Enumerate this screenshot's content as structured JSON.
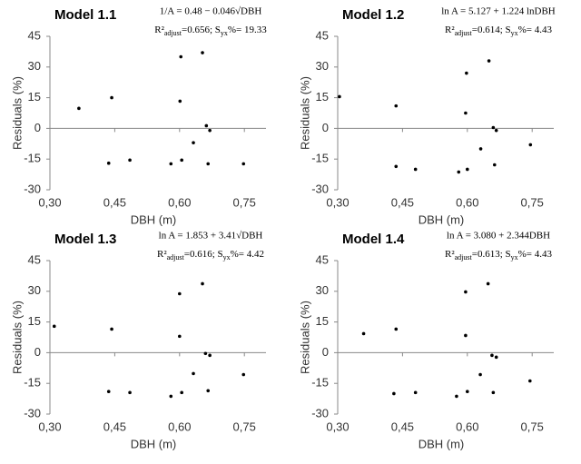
{
  "chart_data": [
    {
      "type": "scatter",
      "title": "Model 1.1",
      "equation": "1/A = 0.48 − 0.046√DBH",
      "fit_stats": [
        "R²",
        "adjust",
        "=0.656; S",
        "yx",
        "%= 19.33"
      ],
      "x_label": "DBH (m)",
      "y_label": "Residuals (%)",
      "color": "#000000",
      "x": [
        0.367,
        0.443,
        0.436,
        0.485,
        0.58,
        0.603,
        0.601,
        0.605,
        0.632,
        0.653,
        0.662,
        0.67,
        0.666,
        0.748
      ],
      "values": [
        9.8,
        15,
        -17,
        -15.5,
        -17.3,
        35,
        13.3,
        -15.5,
        -7,
        37,
        1.3,
        -1,
        -17.3,
        -17.3
      ],
      "xlim": [
        0.3,
        0.8
      ],
      "xticks": [
        {
          "value": 0.3,
          "label": "0,30"
        },
        {
          "value": 0.45,
          "label": "0,45"
        },
        {
          "value": 0.6,
          "label": "0,60"
        },
        {
          "value": 0.75,
          "label": "0,75"
        }
      ],
      "ylim": [
        -30,
        45
      ],
      "yticks": [
        -30,
        -15,
        0,
        15,
        30,
        45
      ]
    },
    {
      "type": "scatter",
      "title": "Model 1.2",
      "equation": "ln A = 5.127 + 1.224 lnDBH",
      "fit_stats": [
        "R²",
        "adjust",
        "=0.614; S",
        "yx",
        "%= 4.43"
      ],
      "x_label": "DBH (m)",
      "y_label": "Residuals (%)",
      "color": "#000000",
      "x": [
        0.304,
        0.435,
        0.435,
        0.48,
        0.58,
        0.598,
        0.596,
        0.6,
        0.631,
        0.65,
        0.66,
        0.667,
        0.663,
        0.746
      ],
      "values": [
        15.5,
        11,
        -18.6,
        -20,
        -21.3,
        27,
        7.5,
        -20,
        -10,
        33,
        0.4,
        -1,
        -17.8,
        -8
      ],
      "xlim": [
        0.3,
        0.8
      ],
      "xticks": [
        {
          "value": 0.3,
          "label": "0,30"
        },
        {
          "value": 0.45,
          "label": "0,45"
        },
        {
          "value": 0.6,
          "label": "0,60"
        },
        {
          "value": 0.75,
          "label": "0,75"
        }
      ],
      "ylim": [
        -30,
        45
      ],
      "yticks": [
        -30,
        -15,
        0,
        15,
        30,
        45
      ]
    },
    {
      "type": "scatter",
      "title": "Model 1.3",
      "equation": "ln A = 1.853 + 3.41√DBH",
      "fit_stats": [
        "R²",
        "adjust",
        "=0.616; S",
        "yx",
        "%= 4.42"
      ],
      "x_label": "DBH (m)",
      "y_label": "Residuals (%)",
      "color": "#000000",
      "x": [
        0.31,
        0.443,
        0.436,
        0.485,
        0.58,
        0.6,
        0.6,
        0.605,
        0.632,
        0.653,
        0.66,
        0.67,
        0.666,
        0.748
      ],
      "values": [
        12.9,
        11.5,
        -19,
        -19.5,
        -21.3,
        28.8,
        8,
        -19.5,
        -10.2,
        33.7,
        -0.4,
        -1.3,
        -18.6,
        -10.7
      ],
      "xlim": [
        0.3,
        0.8
      ],
      "xticks": [
        {
          "value": 0.3,
          "label": "0,30"
        },
        {
          "value": 0.45,
          "label": "0,45"
        },
        {
          "value": 0.6,
          "label": "0,60"
        },
        {
          "value": 0.75,
          "label": "0,75"
        }
      ],
      "ylim": [
        -30,
        45
      ],
      "yticks": [
        -30,
        -15,
        0,
        15,
        30,
        45
      ]
    },
    {
      "type": "scatter",
      "title": "Model 1.4",
      "equation": "ln A = 3.080 + 2.344DBH",
      "fit_stats": [
        "R²",
        "adjust",
        "=0.613; S",
        "yx",
        "%= 4.43"
      ],
      "x_label": "DBH (m)",
      "y_label": "Residuals (%)",
      "color": "#000000",
      "x": [
        0.36,
        0.435,
        0.43,
        0.48,
        0.575,
        0.596,
        0.596,
        0.6,
        0.63,
        0.648,
        0.657,
        0.667,
        0.66,
        0.745
      ],
      "values": [
        9.3,
        11.5,
        -20,
        -19.5,
        -21.3,
        29.7,
        8.4,
        -19,
        -10.7,
        33.7,
        -1.3,
        -2.2,
        -19.5,
        -13.8
      ],
      "xlim": [
        0.3,
        0.8
      ],
      "xticks": [
        {
          "value": 0.3,
          "label": "0,30"
        },
        {
          "value": 0.45,
          "label": "0,45"
        },
        {
          "value": 0.6,
          "label": "0,60"
        },
        {
          "value": 0.75,
          "label": "0,75"
        }
      ],
      "ylim": [
        -30,
        45
      ],
      "yticks": [
        -30,
        -15,
        0,
        15,
        30,
        45
      ]
    }
  ]
}
